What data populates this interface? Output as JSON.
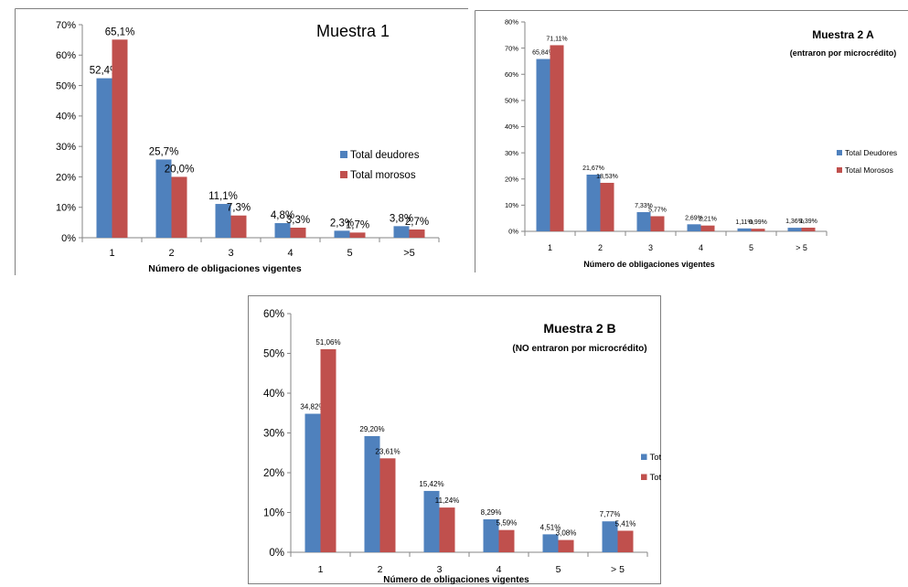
{
  "colors": {
    "deudores": "#4F81BD",
    "morosos": "#C0504D",
    "axis": "#868686",
    "frame": "#7f7f7f"
  },
  "chart_data": [
    {
      "type": "bar",
      "title": "Muestra 1",
      "subtitle": "",
      "xlabel": "Número de obligaciones vigentes",
      "ylabel": "",
      "ylim": [
        0,
        70
      ],
      "yticks": [
        "0%",
        "10%",
        "20%",
        "30%",
        "40%",
        "50%",
        "60%",
        "70%"
      ],
      "categories": [
        "1",
        "2",
        "3",
        "4",
        "5",
        ">5"
      ],
      "series": [
        {
          "name": "Total deudores",
          "values": [
            52.4,
            25.7,
            11.1,
            4.8,
            2.3,
            3.8
          ],
          "labels": [
            "52,4%",
            "25,7%",
            "11,1%",
            "4,8%",
            "2,3%",
            "3,8%"
          ]
        },
        {
          "name": "Total morosos",
          "values": [
            65.1,
            20.0,
            7.3,
            3.3,
            1.7,
            2.7
          ],
          "labels": [
            "65,1%",
            "20,0%",
            "7,3%",
            "3,3%",
            "1,7%",
            "2,7%"
          ]
        }
      ],
      "legend": "right",
      "grid": false
    },
    {
      "type": "bar",
      "title": "Muestra 2 A",
      "subtitle": "(entraron por microcrédito)",
      "xlabel": "Número de obligaciones vigentes",
      "ylabel": "",
      "ylim": [
        0,
        80
      ],
      "yticks": [
        "0%",
        "10%",
        "20%",
        "30%",
        "40%",
        "50%",
        "60%",
        "70%",
        "80%"
      ],
      "categories": [
        "1",
        "2",
        "3",
        "4",
        "5",
        "> 5"
      ],
      "series": [
        {
          "name": "Total Deudores",
          "values": [
            65.84,
            21.67,
            7.33,
            2.69,
            1.11,
            1.36
          ],
          "labels": [
            "65,84%",
            "21,67%",
            "7,33%",
            "2,69%",
            "1,11%",
            "1,36%"
          ]
        },
        {
          "name": "Total Morosos",
          "values": [
            71.11,
            18.53,
            5.77,
            2.21,
            0.99,
            1.39
          ],
          "labels": [
            "71,11%",
            "18,53%",
            "5,77%",
            "2,21%",
            "0,99%",
            "1,39%"
          ]
        }
      ],
      "legend": "right",
      "grid": false
    },
    {
      "type": "bar",
      "title": "Muestra 2 B",
      "subtitle": "(NO entraron por microcrédito)",
      "xlabel": "Número de obligaciones vigentes",
      "ylabel": "",
      "ylim": [
        0,
        60
      ],
      "yticks": [
        "0%",
        "10%",
        "20%",
        "30%",
        "40%",
        "50%",
        "60%"
      ],
      "categories": [
        "1",
        "2",
        "3",
        "4",
        "5",
        "> 5"
      ],
      "series": [
        {
          "name": "Total Deudores",
          "values": [
            34.82,
            29.2,
            15.42,
            8.29,
            4.51,
            7.77
          ],
          "labels": [
            "34,82%",
            "29,20%",
            "15,42%",
            "8,29%",
            "4,51%",
            "7,77%"
          ]
        },
        {
          "name": "Total Morosos",
          "values": [
            51.06,
            23.61,
            11.24,
            5.59,
            3.08,
            5.41
          ],
          "labels": [
            "51,06%",
            "23,61%",
            "11,24%",
            "5,59%",
            "3,08%",
            "5,41%"
          ]
        }
      ],
      "legend": "right",
      "grid": false
    }
  ]
}
